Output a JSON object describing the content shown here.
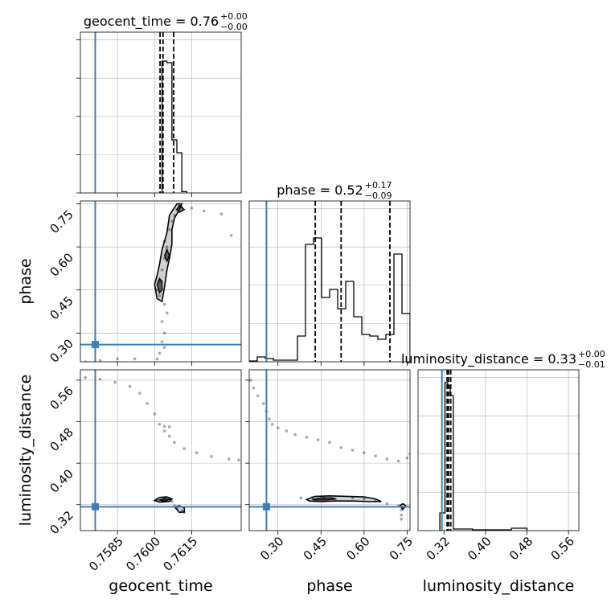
{
  "chart_data": {
    "type": "corner",
    "parameters": [
      {
        "name": "geocent_time",
        "label": "geocent_time",
        "title_value": "0.76",
        "title_plus": "+0.00",
        "title_minus": "−0.00",
        "range": [
          0.757,
          0.7635
        ],
        "ticks": [
          0.7585,
          0.76,
          0.7615
        ],
        "tick_labels": [
          "0.7585",
          "0.7600",
          "0.7615"
        ],
        "truth": 0.7576,
        "quantiles": [
          0.76022,
          0.76034,
          0.76077
        ],
        "hist_edges": [
          0.7603,
          0.7605,
          0.7607,
          0.7609,
          0.7611,
          0.7613
        ],
        "hist_values": [
          0.82,
          0.81,
          0.33,
          0.25,
          0.008
        ]
      },
      {
        "name": "phase",
        "label": "phase",
        "title_value": "0.52",
        "title_plus": "+0.17",
        "title_minus": "−0.09",
        "range": [
          0.2,
          0.76
        ],
        "ticks": [
          0.3,
          0.45,
          0.6,
          0.75
        ],
        "tick_labels": [
          "0.30",
          "0.45",
          "0.60",
          "0.75"
        ],
        "truth": 0.26,
        "quantiles": [
          0.43,
          0.52,
          0.69
        ],
        "hist_edges": [
          0.2,
          0.228,
          0.256,
          0.284,
          0.312,
          0.34,
          0.368,
          0.396,
          0.424,
          0.452,
          0.48,
          0.508,
          0.536,
          0.564,
          0.592,
          0.62,
          0.648,
          0.676,
          0.704,
          0.732,
          0.76
        ],
        "hist_values": [
          0.005,
          0.03,
          0.02,
          0.01,
          0.01,
          0.01,
          0.16,
          0.73,
          0.77,
          0.4,
          0.45,
          0.33,
          0.5,
          0.28,
          0.17,
          0.16,
          0.14,
          0.17,
          0.67,
          0.3
        ]
      },
      {
        "name": "luminosity_distance",
        "label": "luminosity_distance",
        "title_value": "0.33",
        "title_plus": "+0.00",
        "title_minus": "−0.01",
        "range": [
          0.27,
          0.58
        ],
        "ticks": [
          0.32,
          0.4,
          0.48,
          0.56
        ],
        "tick_labels": [
          "0.32",
          "0.40",
          "0.48",
          "0.56"
        ],
        "truth": 0.316,
        "quantiles": [
          0.326,
          0.329,
          0.333
        ],
        "hist_edges": [
          0.312,
          0.322,
          0.327,
          0.332,
          0.338,
          0.375,
          0.405,
          0.45,
          0.48
        ],
        "hist_values": [
          0.11,
          0.92,
          0.9,
          0.84,
          0.01,
          0.005,
          0.005,
          0.015
        ]
      }
    ],
    "scatter_pairs": [
      {
        "x": "geocent_time",
        "y": "phase",
        "points": [
          [
            0.7601,
            0.45
          ],
          [
            0.7602,
            0.48
          ],
          [
            0.7602,
            0.43
          ],
          [
            0.7603,
            0.52
          ],
          [
            0.7604,
            0.56
          ],
          [
            0.7605,
            0.59
          ],
          [
            0.7604,
            0.62
          ],
          [
            0.7606,
            0.66
          ],
          [
            0.7607,
            0.69
          ],
          [
            0.7608,
            0.71
          ],
          [
            0.7609,
            0.73
          ],
          [
            0.7611,
            0.74
          ],
          [
            0.7615,
            0.735
          ],
          [
            0.762,
            0.725
          ],
          [
            0.7627,
            0.715
          ],
          [
            0.7604,
            0.4
          ],
          [
            0.7605,
            0.37
          ],
          [
            0.7603,
            0.34
          ],
          [
            0.7604,
            0.3
          ],
          [
            0.7603,
            0.27
          ],
          [
            0.7604,
            0.25
          ],
          [
            0.7602,
            0.23
          ],
          [
            0.7601,
            0.21
          ],
          [
            0.7592,
            0.21
          ],
          [
            0.7585,
            0.21
          ],
          [
            0.7578,
            0.205
          ],
          [
            0.7572,
            0.2
          ],
          [
            0.7605,
            0.6
          ],
          [
            0.7631,
            0.64
          ]
        ],
        "contours": [
          {
            "level": "outer",
            "points": [
              [
                0.76,
                0.47
              ],
              [
                0.7601,
                0.42
              ],
              [
                0.7603,
                0.41
              ],
              [
                0.7604,
                0.46
              ],
              [
                0.7605,
                0.52
              ],
              [
                0.7606,
                0.56
              ],
              [
                0.7607,
                0.61
              ],
              [
                0.7607,
                0.66
              ],
              [
                0.7608,
                0.7
              ],
              [
                0.761,
                0.73
              ],
              [
                0.7611,
                0.75
              ],
              [
                0.7609,
                0.75
              ],
              [
                0.7606,
                0.71
              ],
              [
                0.7605,
                0.65
              ],
              [
                0.7603,
                0.59
              ],
              [
                0.7602,
                0.54
              ],
              [
                0.7601,
                0.5
              ]
            ]
          },
          {
            "level": "inner",
            "points": [
              [
                0.7601,
                0.47
              ],
              [
                0.7602,
                0.44
              ],
              [
                0.7603,
                0.45
              ],
              [
                0.7603,
                0.48
              ],
              [
                0.7602,
                0.49
              ]
            ]
          },
          {
            "level": "inner",
            "points": [
              [
                0.7604,
                0.57
              ],
              [
                0.7605,
                0.55
              ],
              [
                0.7606,
                0.57
              ],
              [
                0.7605,
                0.59
              ]
            ]
          },
          {
            "level": "inner",
            "points": [
              [
                0.7609,
                0.73
              ],
              [
                0.761,
                0.72
              ],
              [
                0.7612,
                0.73
              ],
              [
                0.761,
                0.745
              ]
            ]
          }
        ]
      },
      {
        "x": "geocent_time",
        "y": "luminosity_distance",
        "points": [
          [
            0.7572,
            0.565
          ],
          [
            0.7578,
            0.562
          ],
          [
            0.7584,
            0.556
          ],
          [
            0.759,
            0.548
          ],
          [
            0.7594,
            0.535
          ],
          [
            0.7597,
            0.515
          ],
          [
            0.76,
            0.495
          ],
          [
            0.7602,
            0.475
          ],
          [
            0.7604,
            0.471
          ],
          [
            0.7606,
            0.47
          ],
          [
            0.7604,
            0.462
          ],
          [
            0.7606,
            0.452
          ],
          [
            0.7608,
            0.44
          ],
          [
            0.7612,
            0.428
          ],
          [
            0.7617,
            0.42
          ],
          [
            0.7623,
            0.413
          ],
          [
            0.763,
            0.408
          ],
          [
            0.7634,
            0.406
          ],
          [
            0.7601,
            0.33
          ],
          [
            0.7604,
            0.331
          ],
          [
            0.7606,
            0.33
          ],
          [
            0.7607,
            0.326
          ],
          [
            0.7608,
            0.318
          ],
          [
            0.7609,
            0.312
          ],
          [
            0.7611,
            0.308
          ],
          [
            0.7612,
            0.305
          ]
        ],
        "contours": [
          {
            "level": "outer",
            "points": [
              [
                0.76,
                0.328
              ],
              [
                0.7602,
                0.334
              ],
              [
                0.7605,
                0.335
              ],
              [
                0.7607,
                0.331
              ],
              [
                0.7606,
                0.326
              ],
              [
                0.7602,
                0.325
              ]
            ]
          },
          {
            "level": "inner",
            "points": [
              [
                0.7602,
                0.329
              ],
              [
                0.7604,
                0.332
              ],
              [
                0.7606,
                0.33
              ],
              [
                0.7604,
                0.327
              ]
            ]
          },
          {
            "level": "outer",
            "points": [
              [
                0.7608,
                0.316
              ],
              [
                0.761,
                0.318
              ],
              [
                0.7612,
                0.314
              ],
              [
                0.7612,
                0.306
              ],
              [
                0.761,
                0.305
              ],
              [
                0.7609,
                0.311
              ]
            ]
          }
        ]
      },
      {
        "x": "phase",
        "y": "luminosity_distance",
        "points": [
          [
            0.205,
            0.56
          ],
          [
            0.215,
            0.545
          ],
          [
            0.23,
            0.53
          ],
          [
            0.25,
            0.515
          ],
          [
            0.26,
            0.5
          ],
          [
            0.27,
            0.485
          ],
          [
            0.28,
            0.475
          ],
          [
            0.3,
            0.468
          ],
          [
            0.33,
            0.462
          ],
          [
            0.36,
            0.455
          ],
          [
            0.4,
            0.45
          ],
          [
            0.44,
            0.445
          ],
          [
            0.48,
            0.44
          ],
          [
            0.52,
            0.43
          ],
          [
            0.56,
            0.425
          ],
          [
            0.6,
            0.42
          ],
          [
            0.64,
            0.414
          ],
          [
            0.68,
            0.408
          ],
          [
            0.72,
            0.404
          ],
          [
            0.75,
            0.41
          ],
          [
            0.76,
            0.418
          ],
          [
            0.38,
            0.333
          ],
          [
            0.42,
            0.334
          ],
          [
            0.46,
            0.333
          ],
          [
            0.5,
            0.331
          ],
          [
            0.56,
            0.333
          ],
          [
            0.6,
            0.331
          ],
          [
            0.64,
            0.327
          ],
          [
            0.68,
            0.322
          ],
          [
            0.72,
            0.318
          ],
          [
            0.73,
            0.31
          ],
          [
            0.73,
            0.3
          ],
          [
            0.73,
            0.292
          ]
        ],
        "contours": [
          {
            "level": "outer",
            "points": [
              [
                0.4,
                0.33
              ],
              [
                0.43,
                0.336
              ],
              [
                0.48,
                0.337
              ],
              [
                0.54,
                0.336
              ],
              [
                0.6,
                0.335
              ],
              [
                0.64,
                0.331
              ],
              [
                0.66,
                0.326
              ],
              [
                0.62,
                0.326
              ],
              [
                0.56,
                0.327
              ],
              [
                0.5,
                0.327
              ],
              [
                0.45,
                0.326
              ],
              [
                0.41,
                0.327
              ]
            ]
          },
          {
            "level": "inner",
            "points": [
              [
                0.42,
                0.33
              ],
              [
                0.45,
                0.333
              ],
              [
                0.49,
                0.333
              ],
              [
                0.5,
                0.331
              ],
              [
                0.47,
                0.329
              ],
              [
                0.43,
                0.329
              ]
            ]
          },
          {
            "level": "outer",
            "points": [
              [
                0.725,
                0.318
              ],
              [
                0.735,
                0.322
              ],
              [
                0.745,
                0.318
              ],
              [
                0.735,
                0.311
              ]
            ]
          }
        ]
      }
    ],
    "truth_color": "#3f7fb5"
  }
}
